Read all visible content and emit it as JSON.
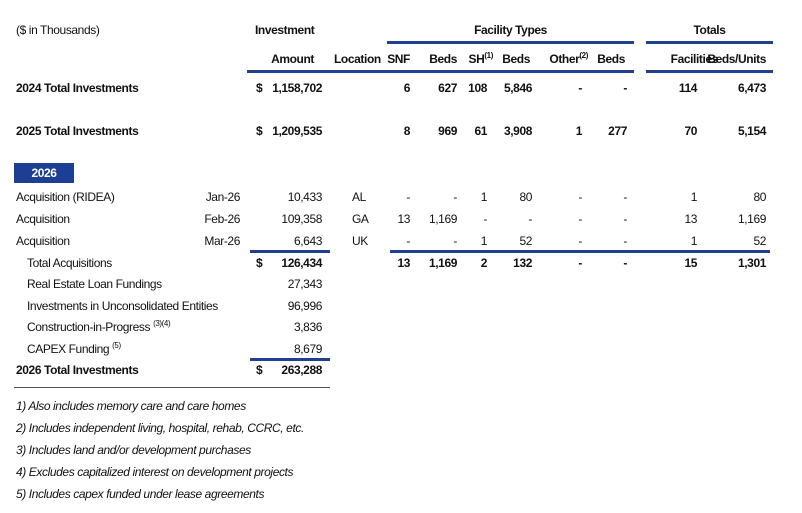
{
  "units_note": "($ in Thousands)",
  "headers": {
    "investment": "Investment",
    "facility_types": "Facility Types",
    "totals": "Totals",
    "columns": [
      "Amount",
      "Location",
      "SNF",
      "Beds",
      "SH",
      "Beds",
      "Other",
      "Beds",
      "Facilities",
      "Beds/Units"
    ],
    "sh_footnote": "(1)",
    "other_footnote": "(2)"
  },
  "summary_rows": [
    {
      "label": "2024 Total Investments",
      "dollar": "$",
      "amount": "1,158,702",
      "snf": "6",
      "snf_beds": "627",
      "sh": "108",
      "sh_beds": "5,846",
      "other": "-",
      "other_beds": "-",
      "facilities": "114",
      "beds_units": "6,473"
    },
    {
      "label": "2025 Total Investments",
      "dollar": "$",
      "amount": "1,209,535",
      "snf": "8",
      "snf_beds": "969",
      "sh": "61",
      "sh_beds": "3,908",
      "other": "1",
      "other_beds": "277",
      "facilities": "70",
      "beds_units": "5,154"
    }
  ],
  "year_badge": "2026",
  "acquisitions": [
    {
      "label": "Acquisition (RIDEA)",
      "date": "Jan-26",
      "amount": "10,433",
      "location": "AL",
      "snf": "-",
      "snf_beds": "-",
      "sh": "1",
      "sh_beds": "80",
      "other": "-",
      "other_beds": "-",
      "facilities": "1",
      "beds_units": "80"
    },
    {
      "label": "Acquisition",
      "date": "Feb-26",
      "amount": "109,358",
      "location": "GA",
      "snf": "13",
      "snf_beds": "1,169",
      "sh": "-",
      "sh_beds": "-",
      "other": "-",
      "other_beds": "-",
      "facilities": "13",
      "beds_units": "1,169"
    },
    {
      "label": "Acquisition",
      "date": "Mar-26",
      "amount": "6,643",
      "location": "UK",
      "snf": "-",
      "snf_beds": "-",
      "sh": "1",
      "sh_beds": "52",
      "other": "-",
      "other_beds": "-",
      "facilities": "1",
      "beds_units": "52"
    }
  ],
  "total_acquisitions": {
    "label": "Total Acquisitions",
    "dollar": "$",
    "amount": "126,434",
    "snf": "13",
    "snf_beds": "1,169",
    "sh": "2",
    "sh_beds": "132",
    "other": "-",
    "other_beds": "-",
    "facilities": "15",
    "beds_units": "1,301"
  },
  "other_items": [
    {
      "label": "Real Estate Loan Fundings",
      "footnote": "",
      "amount": "27,343"
    },
    {
      "label": "Investments in Unconsolidated Entities",
      "footnote": "",
      "amount": "96,996"
    },
    {
      "label": "Construction-in-Progress",
      "footnote": "(3)(4)",
      "amount": "3,836"
    },
    {
      "label": "CAPEX Funding",
      "footnote": "(5)",
      "amount": "8,679"
    }
  ],
  "total_2026": {
    "label": "2026 Total Investments",
    "dollar": "$",
    "amount": "263,288"
  },
  "footnotes": [
    "1) Also includes memory care and care homes",
    "2) Includes independent living, hospital, rehab, CCRC, etc.",
    "3) Includes land and/or development purchases",
    "4) Excludes capitalized interest on development projects",
    "5) Includes capex funded under lease agreements"
  ],
  "colors": {
    "accent": "#1c3f94"
  }
}
